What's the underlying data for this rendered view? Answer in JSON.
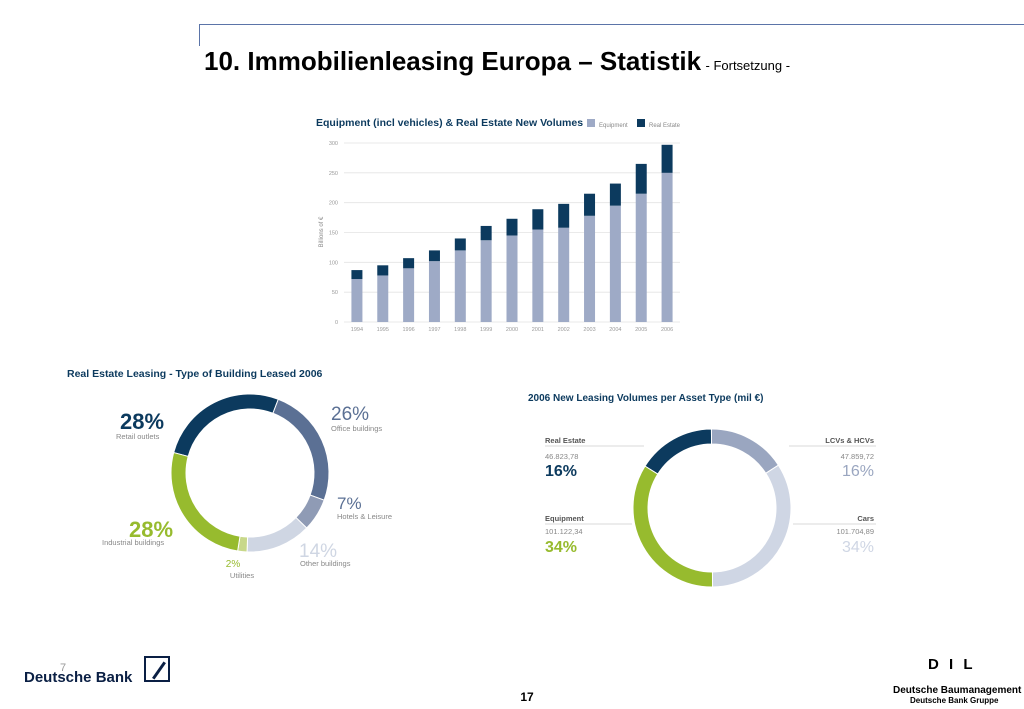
{
  "header": {
    "title": "10. Immobilienleasing Europa – Statistik",
    "subtitle": "- Fortsetzung -"
  },
  "footer": {
    "bank_name": "Deutsche Bank",
    "page_number": "17",
    "dil_letters": "D I L",
    "dil_name": "Deutsche Baumanagement",
    "dil_group": "Deutsche Bank Gruppe",
    "corner_mark": "7"
  },
  "colors": {
    "equipment": "#9eaac6",
    "real_estate": "#0c3a5e",
    "office": "#5b7094",
    "hotels": "#8f9bb5",
    "other": "#cfd6e3",
    "utilities": "#c8d88a",
    "industrial": "#97bb2e",
    "retail": "#0c3a5e",
    "lcv": "#9aa6c0",
    "cars": "#cfd6e4",
    "green": "#97bb2e"
  },
  "chart_data": [
    {
      "type": "bar",
      "title": "Equipment (incl vehicles) & Real Estate New Volumes",
      "ylabel": "Billions of €",
      "xlabel": "",
      "categories": [
        "1994",
        "1995",
        "1996",
        "1997",
        "1998",
        "1999",
        "2000",
        "2001",
        "2002",
        "2003",
        "2004",
        "2005",
        "2006"
      ],
      "stacked": true,
      "series": [
        {
          "name": "Equipment",
          "values": [
            72,
            78,
            90,
            102,
            120,
            137,
            145,
            155,
            158,
            178,
            195,
            215,
            250
          ]
        },
        {
          "name": "Real Estate",
          "values": [
            15,
            17,
            17,
            18,
            20,
            24,
            28,
            34,
            40,
            37,
            37,
            50,
            47
          ]
        }
      ],
      "ylim": [
        0,
        300
      ],
      "yticks": [
        "0",
        "50",
        "100",
        "150",
        "200",
        "250",
        "300"
      ],
      "legend_position": "top-right",
      "grid": true
    },
    {
      "type": "pie",
      "title": "Real Estate Leasing - Type of Building Leased 2006",
      "slices": [
        {
          "label": "Retail outlets",
          "pct": "28%",
          "value": 28
        },
        {
          "label": "Office buildings",
          "pct": "26%",
          "value": 26
        },
        {
          "label": "Hotels & Leisure",
          "pct": "7%",
          "value": 7
        },
        {
          "label": "Other buildings",
          "pct": "14%",
          "value": 14
        },
        {
          "label": "Utilities",
          "pct": "2%",
          "value": 2
        },
        {
          "label": "Industrial buildings",
          "pct": "28%",
          "value": 28
        }
      ]
    },
    {
      "type": "pie",
      "title": "2006 New Leasing Volumes per Asset Type (mil €)",
      "slices": [
        {
          "label": "Real Estate",
          "amount": "46.823,78",
          "pct": "16%",
          "value": 16
        },
        {
          "label": "LCVs & HCVs",
          "amount": "47.859,72",
          "pct": "16%",
          "value": 16
        },
        {
          "label": "Cars",
          "amount": "101.704,89",
          "pct": "34%",
          "value": 34
        },
        {
          "label": "Equipment",
          "amount": "101.122,34",
          "pct": "34%",
          "value": 34
        }
      ]
    }
  ]
}
